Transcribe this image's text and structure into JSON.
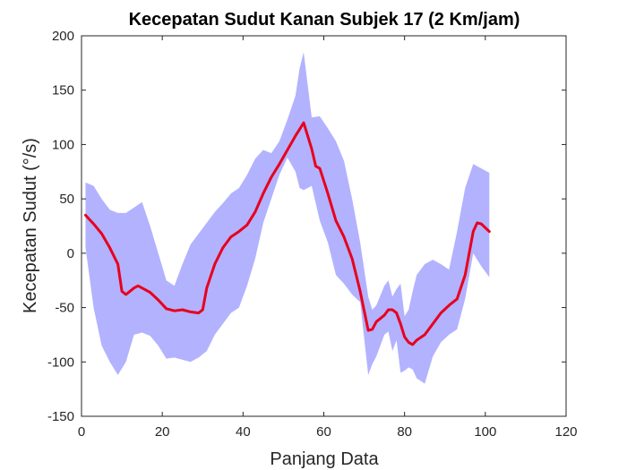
{
  "chart_data": {
    "type": "line",
    "title": "Kecepatan Sudut Kanan Subjek 17 (2 Km/jam)",
    "xlabel": "Panjang Data",
    "ylabel": "Kecepatan Sudut (°/s)",
    "xlim": [
      0,
      120
    ],
    "ylim": [
      -150,
      200
    ],
    "xticks": [
      0,
      20,
      40,
      60,
      80,
      100,
      120
    ],
    "yticks": [
      -150,
      -100,
      -50,
      0,
      50,
      100,
      150,
      200
    ],
    "grid": false,
    "box": true,
    "series": [
      {
        "role": "band",
        "color": "#b2b2ff",
        "x": [
          1,
          3,
          5,
          7,
          9,
          11,
          13,
          15,
          17,
          19,
          21,
          23,
          25,
          27,
          29,
          31,
          33,
          35,
          37,
          39,
          41,
          43,
          45,
          47,
          49,
          51,
          53,
          54,
          55,
          57,
          59,
          61,
          63,
          65,
          67,
          69,
          71,
          72,
          73,
          75,
          76,
          77,
          78,
          79,
          80,
          81,
          82,
          83,
          85,
          87,
          89,
          91,
          93,
          95,
          97,
          99,
          101
        ],
        "upper": [
          65,
          62,
          50,
          40,
          37,
          37,
          42,
          47,
          25,
          0,
          -25,
          -30,
          -10,
          8,
          18,
          28,
          38,
          46,
          55,
          60,
          72,
          87,
          95,
          92,
          103,
          123,
          145,
          170,
          185,
          125,
          126,
          115,
          103,
          85,
          50,
          10,
          -40,
          -52,
          -48,
          -30,
          -25,
          -40,
          -33,
          -28,
          -58,
          -52,
          -35,
          -20,
          -10,
          -6,
          -10,
          -15,
          20,
          60,
          82,
          78,
          74
        ],
        "lower": [
          5,
          -50,
          -85,
          -100,
          -112,
          -100,
          -75,
          -73,
          -76,
          -85,
          -97,
          -96,
          -98,
          -100,
          -96,
          -90,
          -75,
          -65,
          -55,
          -50,
          -30,
          -5,
          28,
          50,
          72,
          88,
          75,
          60,
          58,
          62,
          30,
          10,
          -20,
          -28,
          -38,
          -45,
          -112,
          -102,
          -95,
          -75,
          -72,
          -90,
          -80,
          -110,
          -108,
          -105,
          -107,
          -115,
          -120,
          -95,
          -82,
          -75,
          -70,
          -42,
          0,
          -12,
          -22
        ]
      },
      {
        "role": "mean",
        "color": "#e8001c",
        "x": [
          1,
          3,
          5,
          7,
          9,
          10,
          11,
          13,
          14,
          15,
          17,
          19,
          21,
          23,
          25,
          27,
          29,
          30,
          31,
          33,
          35,
          37,
          39,
          41,
          43,
          45,
          47,
          49,
          51,
          53,
          54,
          55,
          57,
          58,
          59,
          61,
          63,
          65,
          67,
          69,
          71,
          72,
          73,
          75,
          76,
          77,
          78,
          79,
          80,
          81,
          82,
          83,
          85,
          87,
          89,
          91,
          93,
          95,
          97,
          98,
          99,
          101
        ],
        "y": [
          35,
          27,
          18,
          5,
          -10,
          -35,
          -38,
          -32,
          -30,
          -32,
          -36,
          -43,
          -51,
          -53,
          -52,
          -54,
          -55,
          -52,
          -32,
          -10,
          5,
          15,
          20,
          26,
          38,
          55,
          70,
          82,
          95,
          108,
          114,
          120,
          96,
          80,
          78,
          55,
          30,
          15,
          -5,
          -35,
          -71,
          -70,
          -63,
          -57,
          -52,
          -52,
          -55,
          -65,
          -77,
          -82,
          -84,
          -80,
          -75,
          -65,
          -55,
          -48,
          -42,
          -20,
          20,
          28,
          27,
          20
        ]
      }
    ]
  }
}
